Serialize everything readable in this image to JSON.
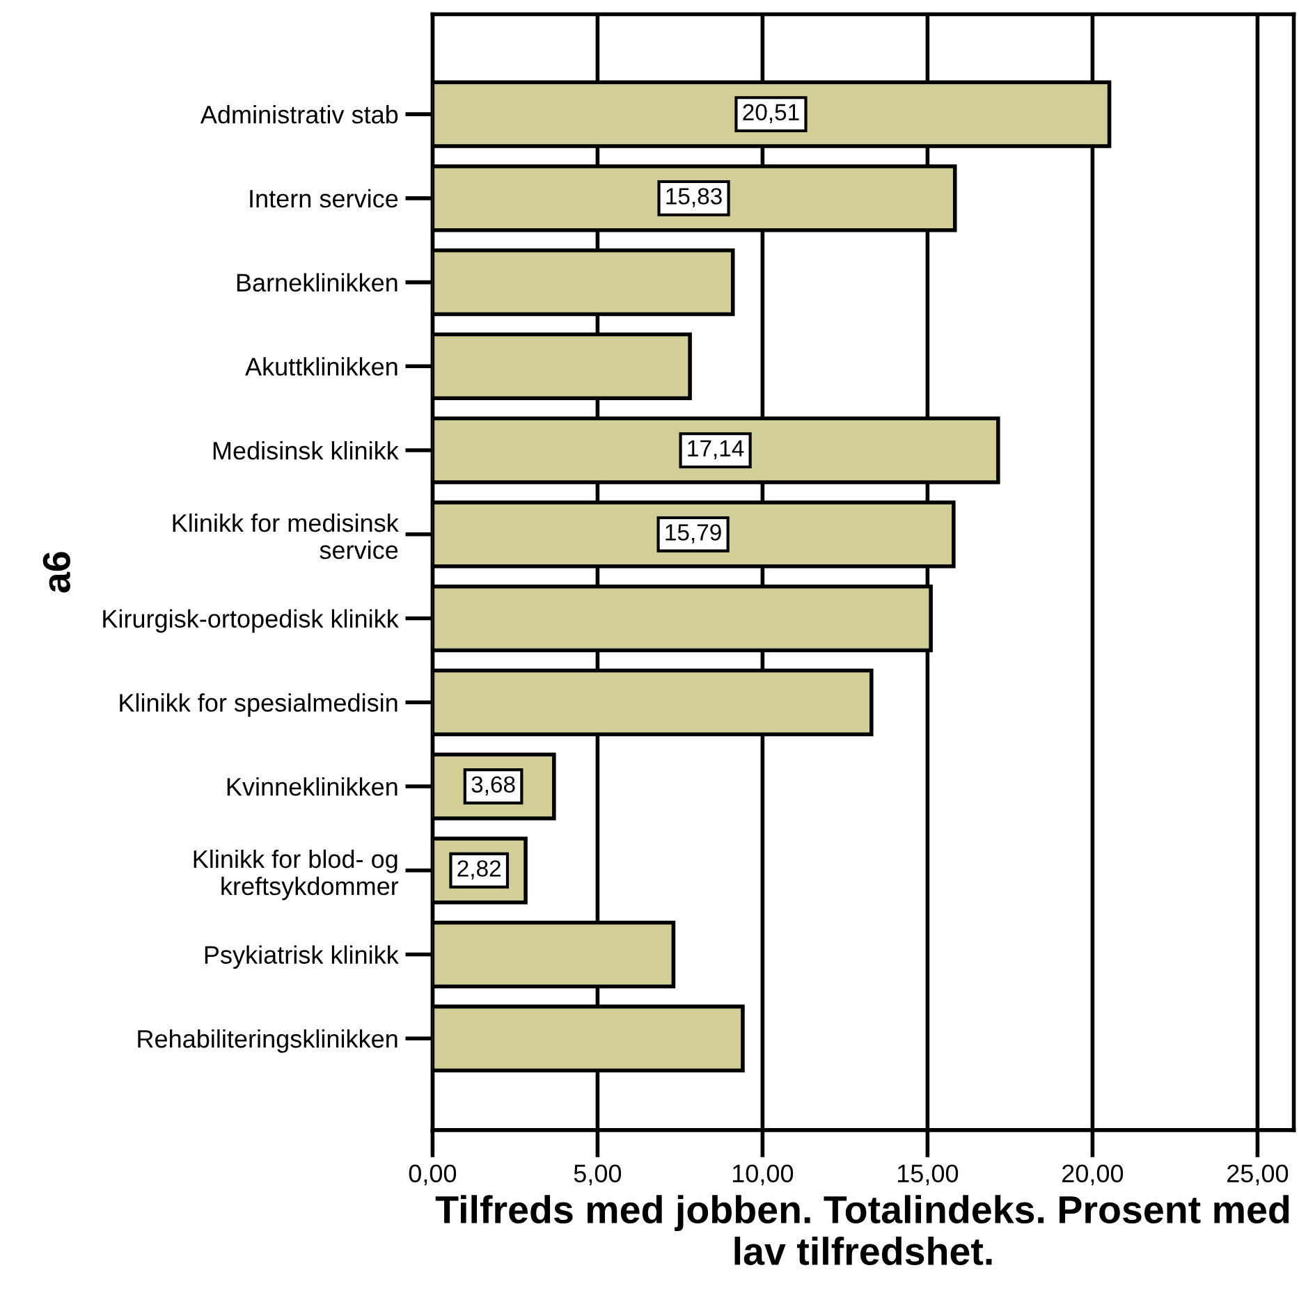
{
  "chart_data": {
    "type": "bar",
    "orientation": "horizontal",
    "xlabel": "Tilfreds med jobben. Totalindeks. Prosent med lav tilfredshet.",
    "ylabel": "a6",
    "categories": [
      "Administrativ stab",
      "Intern service",
      "Barneklinikken",
      "Akuttklinikken",
      "Medisinsk klinikk",
      "Klinikk for medisinsk\nservice",
      "Kirurgisk-ortopedisk klinikk",
      "Klinikk for spesialmedisin",
      "Kvinneklinikken",
      "Klinikk for blod- og\nkreftsykdommer",
      "Psykiatrisk klinikk",
      "Rehabiliteringsklinikken"
    ],
    "values": [
      20.51,
      15.83,
      9.1,
      7.8,
      17.14,
      15.79,
      15.1,
      13.3,
      3.68,
      2.82,
      7.3,
      9.4
    ],
    "value_labels": [
      "20,51",
      "15,83",
      null,
      null,
      "17,14",
      "15,79",
      null,
      null,
      "3,68",
      "2,82",
      null,
      null
    ],
    "color": "#d3ce97",
    "xlim": [
      0,
      26.1
    ],
    "xticks": [
      {
        "value": 0,
        "label": "0,00"
      },
      {
        "value": 5,
        "label": "5,00"
      },
      {
        "value": 10,
        "label": "10,00"
      },
      {
        "value": 15,
        "label": "15,00"
      },
      {
        "value": 20,
        "label": "20,00"
      },
      {
        "value": 25,
        "label": "25,00"
      }
    ],
    "grid": "x"
  }
}
